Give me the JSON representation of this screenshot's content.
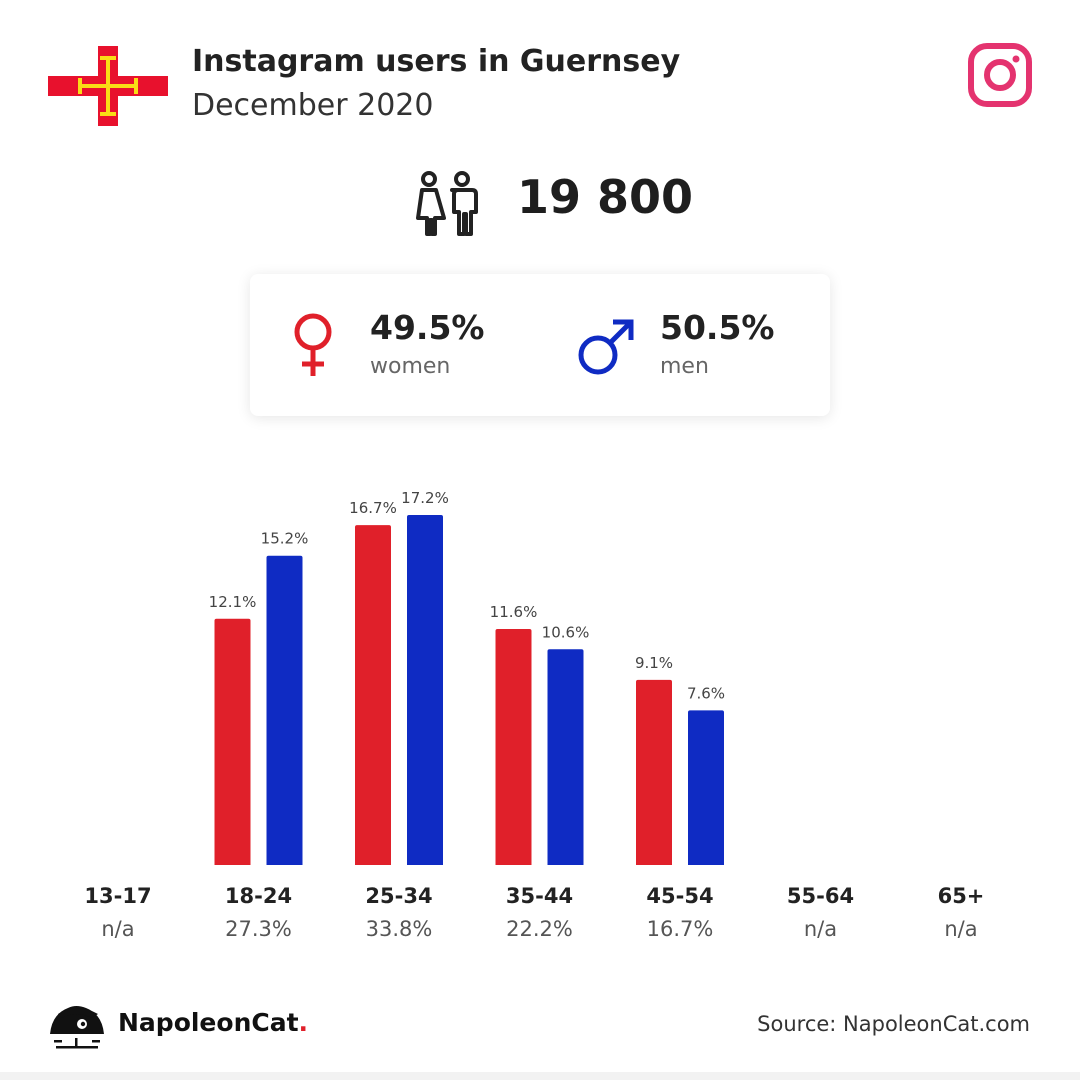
{
  "header": {
    "title": "Instagram users in Guernsey",
    "subtitle": "December 2020",
    "flag_icon": "guernsey-flag-icon",
    "platform_icon": "instagram-icon"
  },
  "total": {
    "icon": "people-icon",
    "value": "19 800"
  },
  "gender": {
    "women": {
      "percent": "49.5%",
      "label": "women",
      "icon": "female-symbol-icon"
    },
    "men": {
      "percent": "50.5%",
      "label": "men",
      "icon": "male-symbol-icon"
    }
  },
  "colors": {
    "women": "#e0202a",
    "men": "#0f2bc3",
    "instagram": "#e4336f"
  },
  "chart_data": {
    "type": "bar",
    "categories": [
      "13-17",
      "18-24",
      "25-34",
      "35-44",
      "45-54",
      "55-64",
      "65+"
    ],
    "category_totals": [
      "n/a",
      "27.3%",
      "33.8%",
      "22.2%",
      "16.7%",
      "n/a",
      "n/a"
    ],
    "series": [
      {
        "name": "women",
        "values": [
          null,
          12.1,
          16.7,
          11.6,
          9.1,
          null,
          null
        ],
        "labels": [
          "",
          "12.1%",
          "16.7%",
          "11.6%",
          "9.1%",
          "",
          ""
        ]
      },
      {
        "name": "men",
        "values": [
          null,
          15.2,
          17.2,
          10.6,
          7.6,
          null,
          null
        ],
        "labels": [
          "",
          "15.2%",
          "17.2%",
          "10.6%",
          "7.6%",
          "",
          ""
        ]
      }
    ],
    "ylim": [
      0,
      17.2
    ],
    "grid": false,
    "legend": "none"
  },
  "footer": {
    "brand_name": "NapoleonCat",
    "brand_dot": ".",
    "source": "Source: NapoleonCat.com",
    "logo_icon": "napoleoncat-logo-icon"
  }
}
